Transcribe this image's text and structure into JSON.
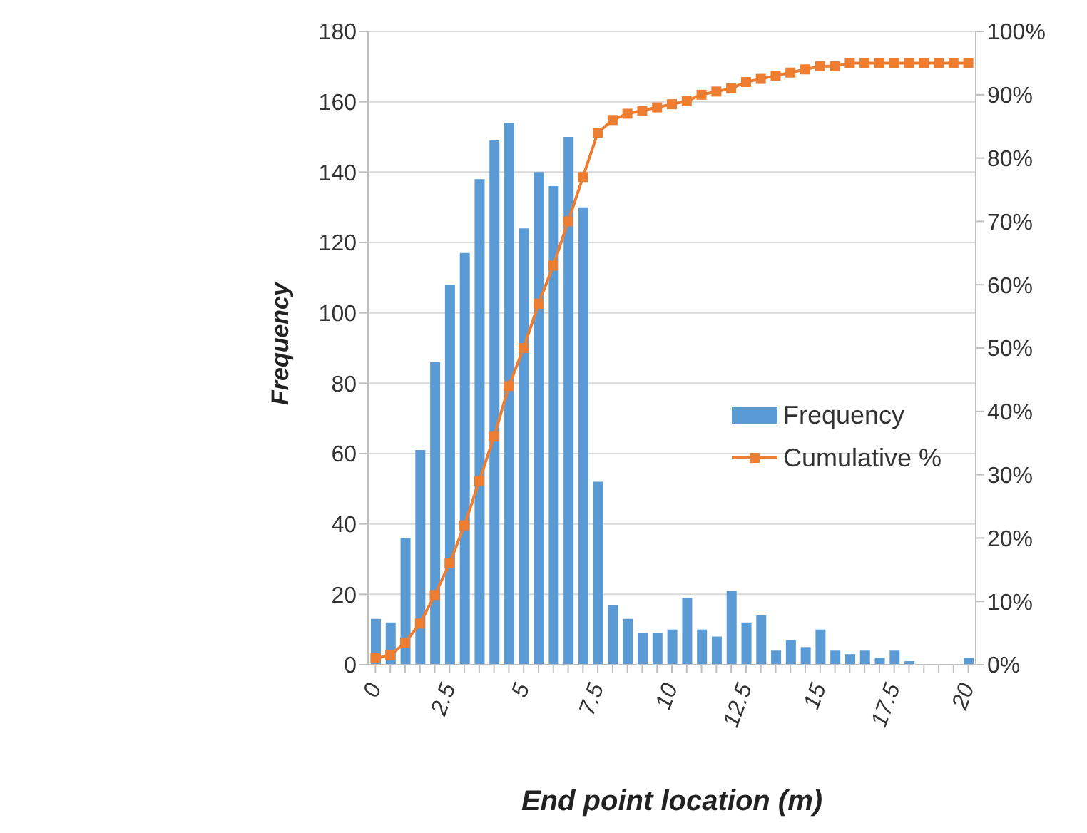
{
  "chart_data": {
    "type": "bar",
    "xlabel": "End point location (m)",
    "ylabel": "Frequency",
    "categories": [
      "0",
      null,
      null,
      null,
      null,
      "2.5",
      null,
      null,
      null,
      null,
      "5",
      null,
      null,
      null,
      null,
      "7.5",
      null,
      null,
      null,
      null,
      "10",
      null,
      null,
      null,
      null,
      "12.5",
      null,
      null,
      null,
      null,
      "15",
      null,
      null,
      null,
      null,
      "17.5",
      null,
      null,
      null,
      null,
      "20"
    ],
    "series": [
      {
        "name": "Frequency",
        "color": "#5b9bd5",
        "values": [
          13,
          12,
          36,
          61,
          86,
          108,
          117,
          138,
          149,
          154,
          124,
          140,
          136,
          150,
          130,
          52,
          17,
          13,
          9,
          9,
          10,
          19,
          10,
          8,
          21,
          12,
          14,
          4,
          7,
          5,
          10,
          4,
          3,
          4,
          2,
          4,
          1,
          0,
          0,
          0,
          2
        ]
      },
      {
        "name": "Cumulative %",
        "type": "line",
        "axis": "y2",
        "color": "#ed7d31",
        "values": [
          1,
          1.5,
          3.5,
          6.5,
          11,
          16,
          22,
          29,
          36,
          44,
          50,
          57,
          63,
          70,
          77,
          84,
          86,
          87,
          87.5,
          88,
          88.5,
          89,
          90,
          90.5,
          91,
          92,
          92.5,
          93,
          93.5,
          94,
          94.5,
          94.5,
          95,
          95,
          95,
          95,
          95,
          95,
          95,
          95,
          95
        ]
      }
    ],
    "ylim": [
      0,
      180
    ],
    "yticks": [
      0,
      20,
      40,
      60,
      80,
      100,
      120,
      140,
      160,
      180
    ],
    "y2lim": [
      0,
      100
    ],
    "y2ticks": [
      {
        "value": 0,
        "label": "0%"
      },
      {
        "value": 10,
        "label": "10%"
      },
      {
        "value": 20,
        "label": "20%"
      },
      {
        "value": 30,
        "label": "30%"
      },
      {
        "value": 40,
        "label": "40%"
      },
      {
        "value": 50,
        "label": "50%"
      },
      {
        "value": 60,
        "label": "60%"
      },
      {
        "value": 70,
        "label": "70%"
      },
      {
        "value": 80,
        "label": "80%"
      },
      {
        "value": 90,
        "label": "90%"
      },
      {
        "value": 100,
        "label": "100%"
      }
    ],
    "grid": "y",
    "legend": "right",
    "marker": "square",
    "line_style": "solid"
  }
}
